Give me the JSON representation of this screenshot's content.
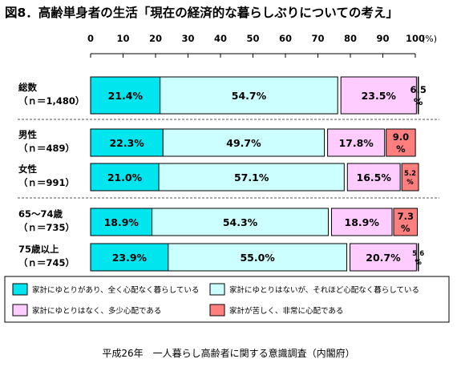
{
  "title": "図8．高齢単身者の生活「現在の経済的な暮らしぶりについての考え」",
  "source": "平成26年　一人暮らし高齢者に関する意識調査（内閣府）",
  "colors": {
    "cat1": "#00E5EE",
    "cat2": "#CCFFFF",
    "cat3": "#FFCCFF",
    "cat4": "#FF7F7F"
  },
  "chart_data": {
    "type": "bar",
    "orientation": "horizontal",
    "stacked": true,
    "axis": {
      "ticks": [
        "0",
        "10",
        "20",
        "30",
        "40",
        "50",
        "60",
        "70",
        "80",
        "90",
        "100"
      ],
      "unit": "(%)",
      "xlim": [
        0,
        100
      ]
    },
    "legend": [
      "家計にゆとりがあり、全く心配なく暮らしている",
      "家計にゆとりはないが、それほど心配なく暮らしている",
      "家計にゆとりはなく、多少心配である",
      "家計が苦しく、非常に心配である"
    ],
    "rows": [
      {
        "label": "総数",
        "n": "（ｎ＝1,480）",
        "values": [
          21.4,
          54.7,
          23.5,
          6.5
        ],
        "labels": [
          "21.4%",
          "54.7%",
          "23.5%",
          "6.5%"
        ]
      },
      {
        "label": "男性",
        "n": "（ｎ＝489）",
        "values": [
          22.3,
          49.7,
          17.8,
          9.0
        ],
        "labels": [
          "22.3%",
          "49.7%",
          "17.8%",
          "9.0%"
        ]
      },
      {
        "label": "女性",
        "n": "（ｎ＝991）",
        "values": [
          21.0,
          57.1,
          16.5,
          5.2
        ],
        "labels": [
          "21.0%",
          "57.1%",
          "16.5%",
          "5.2%"
        ]
      },
      {
        "label": "65～74歳",
        "n": "（ｎ＝735）",
        "values": [
          18.9,
          54.3,
          18.9,
          7.3
        ],
        "labels": [
          "18.9%",
          "54.3%",
          "18.9%",
          "7.3%"
        ]
      },
      {
        "label": "75歳以上",
        "n": "（ｎ＝745）",
        "values": [
          23.9,
          55.0,
          20.7,
          5.6
        ],
        "labels": [
          "23.9%",
          "55.0%",
          "20.7%",
          "5.6%"
        ]
      }
    ]
  }
}
